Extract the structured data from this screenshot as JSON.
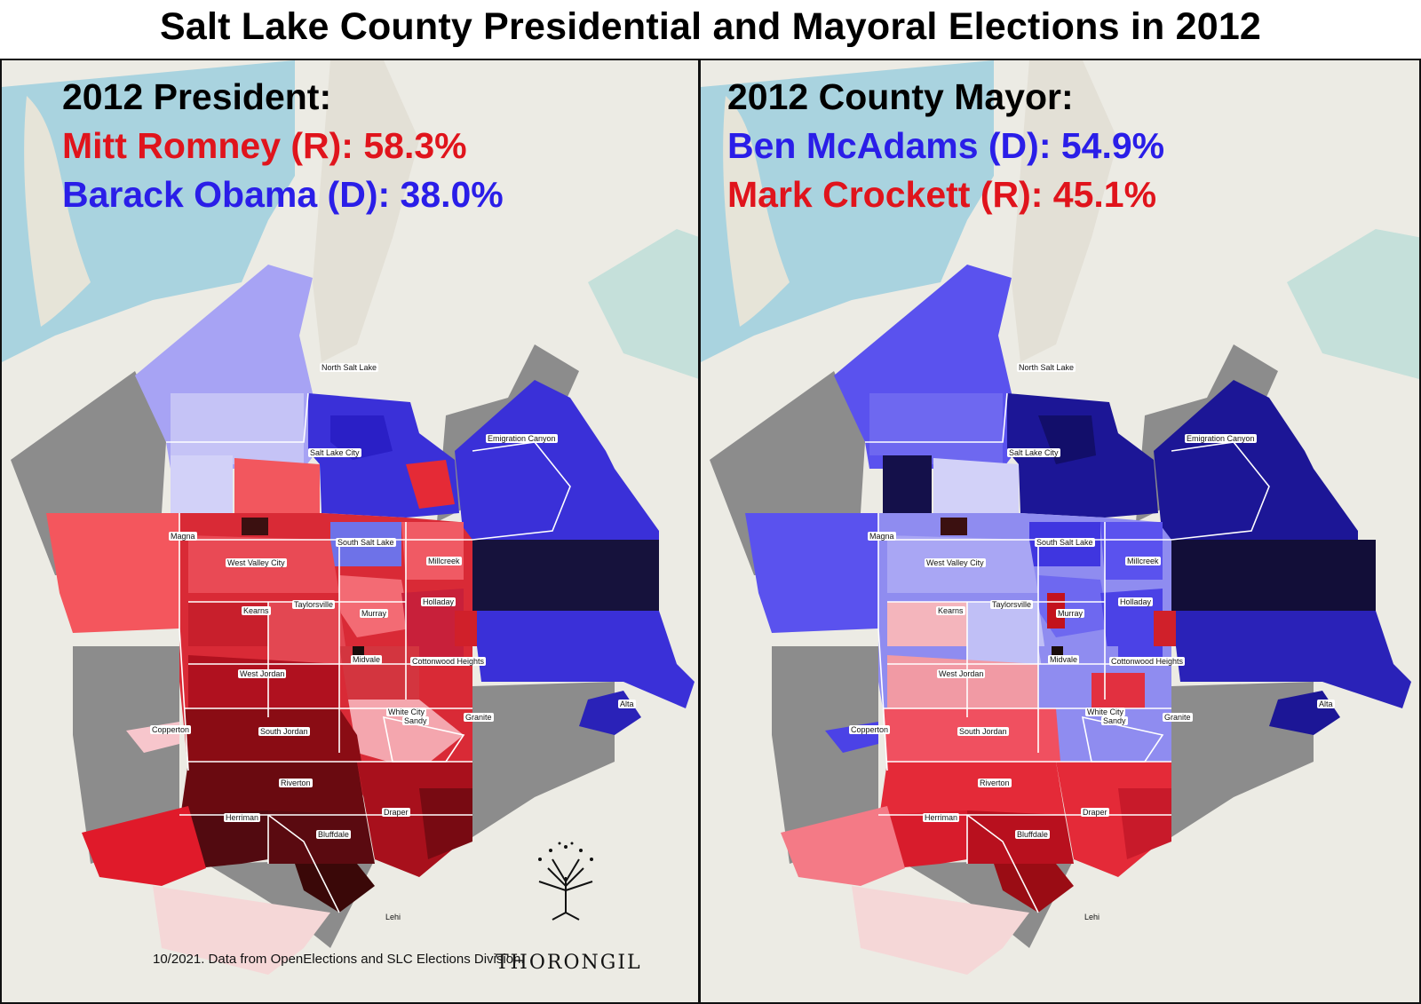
{
  "title": "Salt Lake County Presidential and Mayoral Elections in 2012",
  "colors": {
    "republican": "#e0141c",
    "democrat": "#2a1ee8",
    "no_data": "#8c8c8c",
    "water": "#a9d3df",
    "land": "#ecebe4"
  },
  "panels": [
    {
      "heading": "2012 President:",
      "candidates": [
        {
          "label": "Mitt Romney (R): 58.3%",
          "party": "R",
          "share": 58.3
        },
        {
          "label": "Barack Obama (D): 38.0%",
          "party": "D",
          "share": 38.0
        }
      ]
    },
    {
      "heading": "2012 County Mayor:",
      "candidates": [
        {
          "label": "Ben McAdams (D): 54.9%",
          "party": "D",
          "share": 54.9
        },
        {
          "label": "Mark Crockett (R): 45.1%",
          "party": "R",
          "share": 45.1
        }
      ]
    }
  ],
  "places": {
    "north_salt_lake": "North Salt Lake",
    "salt_lake_city": "Salt Lake City",
    "emigration_canyon": "Emigration Canyon",
    "magna": "Magna",
    "south_salt_lake": "South Salt Lake",
    "west_valley_city": "West Valley City",
    "millcreek": "Millcreek",
    "kearns": "Kearns",
    "taylorsville": "Taylorsville",
    "murray": "Murray",
    "holladay": "Holladay",
    "midvale": "Midvale",
    "cottonwood_heights": "Cottonwood Heights",
    "west_jordan": "West Jordan",
    "white_city": "White City",
    "sandy": "Sandy",
    "granite": "Granite",
    "alta": "Alta",
    "copperton": "Copperton",
    "south_jordan": "South Jordan",
    "riverton": "Riverton",
    "herriman": "Herriman",
    "draper": "Draper",
    "bluffdale": "Bluffdale",
    "lehi": "Lehi"
  },
  "credit": "10/2021. Data from OpenElections and SLC Elections Division.",
  "logo": {
    "text": "THORONGIL",
    "icon": "tree-logo-icon"
  }
}
